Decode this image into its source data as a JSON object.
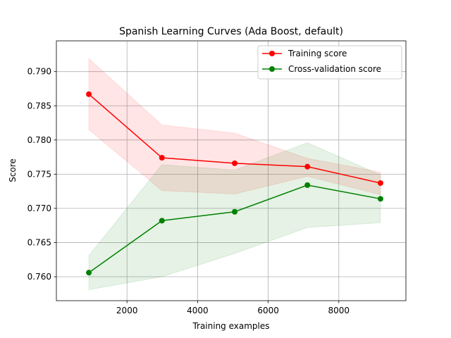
{
  "chart_data": {
    "type": "line",
    "title": "Spanish Learning Curves (Ada Boost, default)",
    "xlabel": "Training examples",
    "ylabel": "Score",
    "xlim": [
      0,
      9900
    ],
    "ylim": [
      0.7565,
      0.7945
    ],
    "x_ticks": [
      2000,
      4000,
      6000,
      8000
    ],
    "y_ticks": [
      0.76,
      0.765,
      0.77,
      0.775,
      0.78,
      0.785,
      0.79
    ],
    "grid": true,
    "legend_position": "top-right",
    "x": [
      920,
      2990,
      5050,
      7110,
      9180
    ],
    "series": [
      {
        "name": "Training score",
        "color": "#ff0000",
        "values": [
          0.7867,
          0.7774,
          0.7766,
          0.7761,
          0.7737
        ],
        "band_lower": [
          0.7815,
          0.7726,
          0.7721,
          0.7747,
          0.772
        ],
        "band_upper": [
          0.7919,
          0.7822,
          0.781,
          0.7773,
          0.7753
        ],
        "band_color": "#ff0000"
      },
      {
        "name": "Cross-validation score",
        "color": "#008000",
        "values": [
          0.7606,
          0.7682,
          0.7695,
          0.7734,
          0.7714
        ],
        "band_lower": [
          0.7581,
          0.76,
          0.7634,
          0.7672,
          0.7679
        ],
        "band_upper": [
          0.7631,
          0.7764,
          0.7756,
          0.7796,
          0.7749
        ],
        "band_color": "#008000"
      }
    ]
  }
}
